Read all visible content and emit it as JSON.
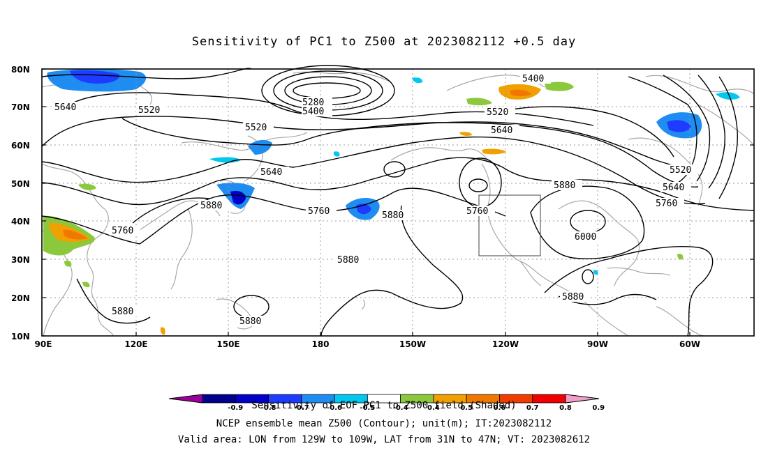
{
  "title": "Sensitivity of PC1 to Z500 at 2023082112 +0.5 day",
  "axes": {
    "lat_ticks": [
      "80N",
      "70N",
      "60N",
      "50N",
      "40N",
      "30N",
      "20N",
      "10N"
    ],
    "lon_ticks": [
      "90E",
      "120E",
      "150E",
      "180",
      "150W",
      "120W",
      "90W",
      "60W"
    ]
  },
  "contour_labels": [
    "5640",
    "5520",
    "5520",
    "5280",
    "5400",
    "5400",
    "5520",
    "5640",
    "5640",
    "5520",
    "5640",
    "5760",
    "5880",
    "5880",
    "5760",
    "5880",
    "5760",
    "5760",
    "5880",
    "5640",
    "5760",
    "6000",
    "5880",
    "5880",
    "5880",
    "5880"
  ],
  "colorbar": {
    "ticks": [
      "-0.9",
      "-0.8",
      "-0.7",
      "-0.6",
      "-0.5",
      "-0.4",
      "0.4",
      "0.5",
      "0.6",
      "0.7",
      "0.8",
      "0.9"
    ],
    "colors": [
      "#9c009c",
      "#00008c",
      "#0000c8",
      "#1e3cff",
      "#1e8cf0",
      "#00c8f0",
      "#ffffff",
      "#8cc83c",
      "#f0a000",
      "#f07800",
      "#f03c00",
      "#f00000",
      "#f0a0c8"
    ]
  },
  "caption": {
    "line0": "Sensitivity of EOF PC1 to Z500 field (Shaded)",
    "line1": "NCEP ensemble mean Z500 (Contour); unit(m); IT:2023082112",
    "line2": "Valid area: LON from 129W to 109W, LAT from 31N to 47N; VT: 2023082612"
  }
}
